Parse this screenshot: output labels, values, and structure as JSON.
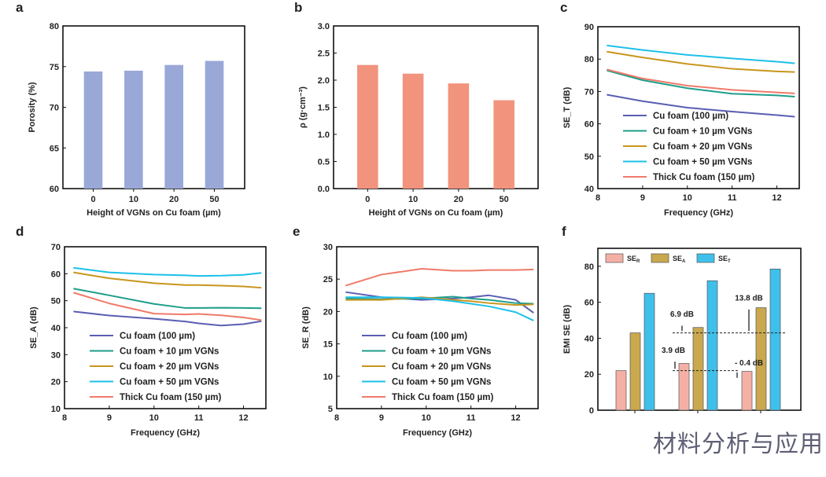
{
  "chart_data": [
    {
      "panel": "a",
      "type": "bar",
      "categories": [
        "0",
        "10",
        "20",
        "50"
      ],
      "values": [
        74.4,
        74.5,
        75.2,
        75.7
      ],
      "xlabel": "Height of VGNs on Cu foam (µm)",
      "ylabel": "Porosity (%)",
      "ylim": [
        60,
        80
      ],
      "yticks": [
        60,
        65,
        70,
        75,
        80
      ],
      "color": "#9aa8d8"
    },
    {
      "panel": "b",
      "type": "bar",
      "categories": [
        "0",
        "10",
        "20",
        "50"
      ],
      "values": [
        2.28,
        2.12,
        1.94,
        1.63
      ],
      "xlabel": "Height of VGNs on Cu foam (µm)",
      "ylabel": "ρ (g·cm⁻³)",
      "ylim": [
        0,
        3
      ],
      "yticks": [
        "0.0",
        "0.5",
        "1.0",
        "1.5",
        "2.0",
        "2.5",
        "3.0"
      ],
      "color": "#f2937e"
    },
    {
      "panel": "c",
      "type": "line",
      "xlabel": "Frequency (GHz)",
      "ylabel": "SE_T (dB)",
      "xlim": [
        8,
        12.5
      ],
      "ylim": [
        40,
        90
      ],
      "xticks": [
        8,
        9,
        10,
        11,
        12
      ],
      "yticks": [
        40,
        50,
        60,
        70,
        80,
        90
      ],
      "legend": "bottom",
      "x": [
        8.2,
        9,
        10,
        11,
        12,
        12.4
      ],
      "series": [
        {
          "name": "Cu foam (100 µm)",
          "color": "#5a5eb2",
          "values": [
            69,
            67,
            65,
            63.8,
            62.7,
            62.2
          ]
        },
        {
          "name": "Cu foam + 10 µm VGNs",
          "color": "#1e9e8a",
          "values": [
            76.5,
            73.5,
            71,
            69.3,
            68.8,
            68.4
          ]
        },
        {
          "name": "Cu foam + 20 µm VGNs",
          "color": "#c8951c",
          "values": [
            82.3,
            80.5,
            78.5,
            77,
            76.2,
            76
          ]
        },
        {
          "name": "Cu foam + 50 µm VGNs",
          "color": "#1cc0ea",
          "values": [
            84.2,
            82.8,
            81.3,
            80.2,
            79.2,
            78.7
          ]
        },
        {
          "name": "Thick Cu foam (150 µm)",
          "color": "#f07a6a",
          "values": [
            76.8,
            74,
            71.8,
            70.5,
            69.7,
            69.4
          ]
        }
      ]
    },
    {
      "panel": "d",
      "type": "line",
      "xlabel": "Frequency (GHz)",
      "ylabel": "SE_A (dB)",
      "xlim": [
        8,
        12.5
      ],
      "ylim": [
        10,
        70
      ],
      "xticks": [
        8,
        9,
        10,
        11,
        12
      ],
      "yticks": [
        10,
        20,
        30,
        40,
        50,
        60,
        70
      ],
      "legend": "bottom",
      "x": [
        8.2,
        9,
        10,
        10.7,
        11,
        11.5,
        12,
        12.4
      ],
      "series": [
        {
          "name": "Cu foam (100 µm)",
          "color": "#5a5eb2",
          "values": [
            46,
            44.5,
            43.3,
            42.3,
            41.6,
            40.8,
            41.3,
            42.4
          ]
        },
        {
          "name": "Cu foam + 10 µm VGNs",
          "color": "#1e9e8a",
          "values": [
            54.5,
            52,
            48.8,
            47.3,
            47.3,
            47.4,
            47.3,
            47.2
          ]
        },
        {
          "name": "Cu foam + 20 µm VGNs",
          "color": "#c8951c",
          "values": [
            60.5,
            58.3,
            56.5,
            55.8,
            55.8,
            55.6,
            55.3,
            54.8
          ]
        },
        {
          "name": "Cu foam + 50 µm VGNs",
          "color": "#1cc0ea",
          "values": [
            62.2,
            60.5,
            59.7,
            59.4,
            59.2,
            59.3,
            59.6,
            60.3
          ]
        },
        {
          "name": "Thick Cu foam (150 µm)",
          "color": "#f07a6a",
          "values": [
            53,
            49,
            45.2,
            44.9,
            45.1,
            44.6,
            43.8,
            42.8
          ]
        }
      ]
    },
    {
      "panel": "e",
      "type": "line",
      "xlabel": "Frequency (GHz)",
      "ylabel": "SE_R (dB)",
      "xlim": [
        8,
        12.5
      ],
      "ylim": [
        5,
        30
      ],
      "xticks": [
        8,
        9,
        10,
        11,
        12
      ],
      "yticks": [
        5,
        10,
        15,
        20,
        25,
        30
      ],
      "legend": "bottom",
      "x": [
        8.2,
        9,
        9.9,
        10.6,
        11,
        11.4,
        12,
        12.4
      ],
      "series": [
        {
          "name": "Cu foam (100 µm)",
          "color": "#5a5eb2",
          "values": [
            23,
            22.2,
            21.8,
            22,
            22.2,
            22.5,
            21.8,
            19.8
          ]
        },
        {
          "name": "Cu foam + 10 µm VGNs",
          "color": "#1e9e8a",
          "values": [
            22,
            21.9,
            22,
            22.3,
            22,
            21.8,
            21.3,
            21.2
          ]
        },
        {
          "name": "Cu foam + 20 µm VGNs",
          "color": "#c8951c",
          "values": [
            21.8,
            21.8,
            22.2,
            21.8,
            21.6,
            21.3,
            21,
            21.1
          ]
        },
        {
          "name": "Cu foam + 50 µm VGNs",
          "color": "#1cc0ea",
          "values": [
            22.2,
            22.2,
            22.1,
            21.6,
            21.2,
            20.8,
            19.9,
            18.6
          ]
        },
        {
          "name": "Thick Cu foam (150 µm)",
          "color": "#f07a6a",
          "values": [
            24,
            25.7,
            26.6,
            26.3,
            26.3,
            26.4,
            26.4,
            26.5
          ]
        }
      ]
    },
    {
      "panel": "f",
      "type": "bar",
      "ylabel": "EMI SE (dB)",
      "ylim": [
        0,
        90
      ],
      "yticks": [
        0,
        20,
        40,
        60,
        80
      ],
      "legend": "top",
      "series": [
        {
          "name": "SE_R",
          "color": "#f5b0a6",
          "values": [
            22,
            26,
            21.6
          ]
        },
        {
          "name": "SE_A",
          "color": "#c9a84e",
          "values": [
            43,
            46,
            57
          ]
        },
        {
          "name": "SE_T",
          "color": "#3fc0ea",
          "values": [
            65,
            72,
            78.5
          ]
        }
      ],
      "annotations": [
        "6.9 dB",
        "3.9 dB",
        "13.8 dB",
        "- 0.4 dB"
      ]
    }
  ],
  "watermark": "材料分析与应用"
}
